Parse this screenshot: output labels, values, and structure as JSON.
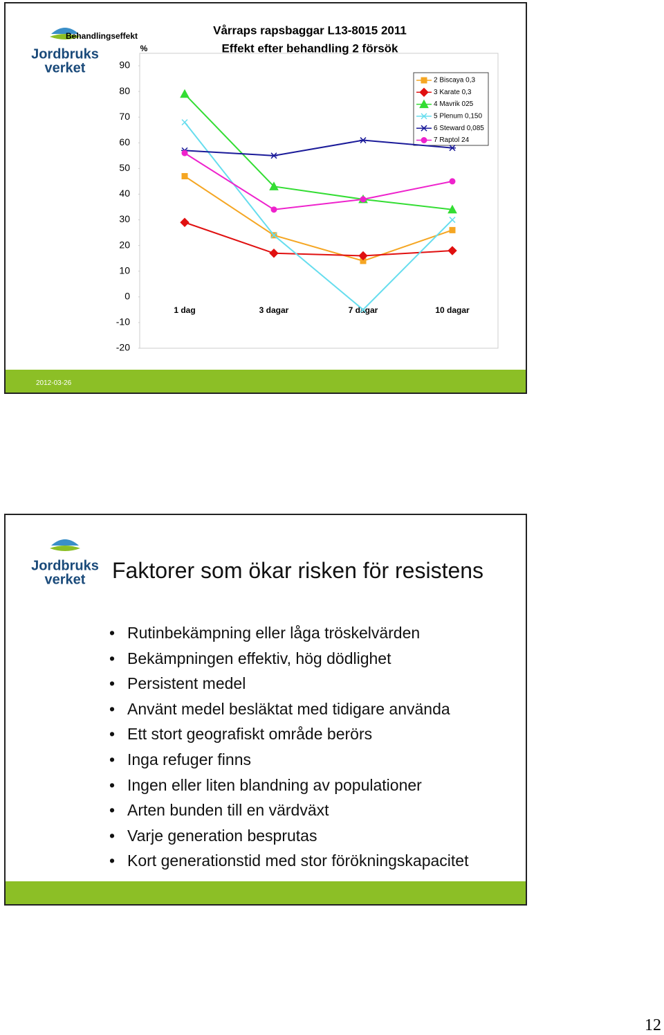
{
  "slides": [
    {
      "logo": [
        "Jordbruks",
        "verket"
      ],
      "date": "2012-03-26",
      "chart_data": {
        "type": "line",
        "title": [
          "Vårraps rapsbaggar L13-8015 2011",
          "Effekt efter behandling 2 försök"
        ],
        "y_label": [
          "Behandlingseffekt",
          "%"
        ],
        "categories": [
          "1 dag",
          "3 dagar",
          "7 dagar",
          "10 dagar"
        ],
        "ylim": [
          -20,
          90
        ],
        "yticks": [
          90,
          80,
          70,
          60,
          50,
          40,
          30,
          20,
          10,
          0,
          -10,
          -20
        ],
        "legend": "upper right",
        "series": [
          {
            "name": "2 Biscaya 0,3",
            "color": "#f5a623",
            "marker": "square",
            "values": [
              47,
              24,
              14,
              26
            ]
          },
          {
            "name": "3 Karate 0,3",
            "color": "#e01010",
            "marker": "diamond",
            "values": [
              29,
              17,
              16,
              18
            ]
          },
          {
            "name": "4 Mavrik 025",
            "color": "#33dd33",
            "marker": "triangle",
            "values": [
              79,
              43,
              38,
              34
            ]
          },
          {
            "name": "5 Plenum 0,150",
            "color": "#66ddee",
            "marker": "x",
            "values": [
              68,
              24,
              -5,
              30
            ]
          },
          {
            "name": "6 Steward 0,085",
            "color": "#1a1a99",
            "marker": "star",
            "values": [
              57,
              55,
              61,
              58
            ]
          },
          {
            "name": "7 Raptol 24",
            "color": "#ee22cc",
            "marker": "circle",
            "values": [
              56,
              34,
              38,
              45
            ]
          }
        ]
      }
    },
    {
      "logo": [
        "Jordbruks",
        "verket"
      ],
      "title": "Faktorer som ökar risken för resistens",
      "bullets": [
        "Rutinbekämpning eller låga tröskelvärden",
        "Bekämpningen effektiv, hög dödlighet",
        "Persistent medel",
        "Använt medel besläktat med tidigare använda",
        "Ett stort geografiskt område berörs",
        "Inga refuger finns",
        "Ingen eller liten blandning av populationer",
        "Arten bunden till en värdväxt",
        "Varje generation besprutas",
        "Kort generationstid med stor förökningskapacitet"
      ],
      "date": ""
    }
  ],
  "page_number": "12"
}
